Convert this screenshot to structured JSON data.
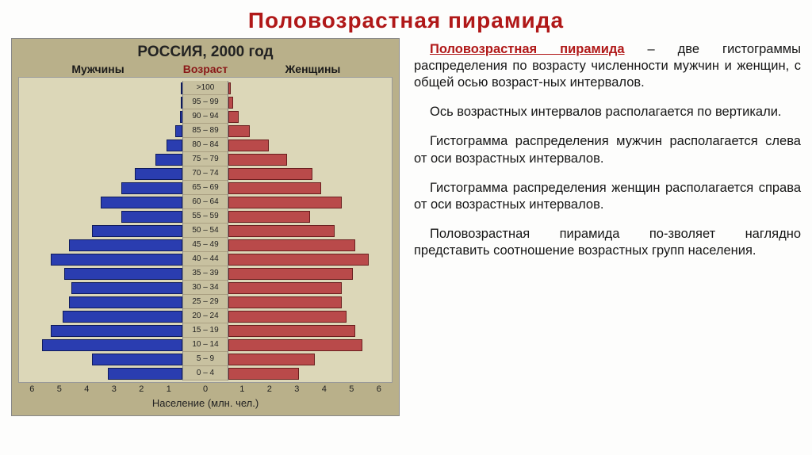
{
  "title": "Половозрастная  пирамида",
  "chart": {
    "type": "population-pyramid",
    "title": "РОССИЯ, 2000 год",
    "header_men": "Мужчины",
    "header_age": "Возраст",
    "header_women": "Женщины",
    "x_label": "Население  (млн. чел.)",
    "x_ticks": [
      "0",
      "1",
      "2",
      "3",
      "4",
      "5",
      "6"
    ],
    "x_max": 7,
    "age_labels": [
      ">100",
      "95 – 99",
      "90 – 94",
      "85 – 89",
      "80 – 84",
      "75 – 79",
      "70 – 74",
      "65 – 69",
      "60 – 64",
      "55 – 59",
      "50 – 54",
      "45 – 49",
      "40 – 44",
      "35 – 39",
      "30 – 34",
      "25 – 29",
      "20 – 24",
      "15 – 19",
      "10 – 14",
      "5 – 9",
      "0 – 4"
    ],
    "men": [
      0.03,
      0.05,
      0.12,
      0.3,
      0.7,
      1.2,
      2.1,
      2.7,
      3.6,
      2.7,
      4.0,
      5.0,
      5.8,
      5.2,
      4.9,
      5.0,
      5.3,
      5.8,
      6.2,
      4.0,
      3.3
    ],
    "women": [
      0.1,
      0.2,
      0.45,
      0.95,
      1.8,
      2.6,
      3.7,
      4.1,
      5.0,
      3.6,
      4.7,
      5.6,
      6.2,
      5.5,
      5.0,
      5.0,
      5.2,
      5.6,
      5.9,
      3.8,
      3.1
    ],
    "colors": {
      "men_bar": "#2a3db0",
      "men_border": "#0e1a5a",
      "women_bar": "#b94a4a",
      "women_border": "#6a1e1e",
      "plot_bg": "#dcd7b8",
      "chart_bg": "#b9b08a",
      "axis_bg": "#c8c1a0"
    }
  },
  "text": {
    "p1_term": "Половозрастная пирамида",
    "p1_rest": " – две гистограммы распределения по возрасту численности мужчин и женщин, с общей осью возраст-ных интервалов.",
    "p2": "Ось возрастных интервалов располагается по вертикали.",
    "p3": "Гистограмма распределения мужчин располагается слева от оси возрастных интервалов.",
    "p4": "Гистограмма распределения женщин располагается справа от оси возрастных интервалов.",
    "p5": "Половозрастная пирамида по-зволяет наглядно представить соотношение возрастных групп населения."
  }
}
